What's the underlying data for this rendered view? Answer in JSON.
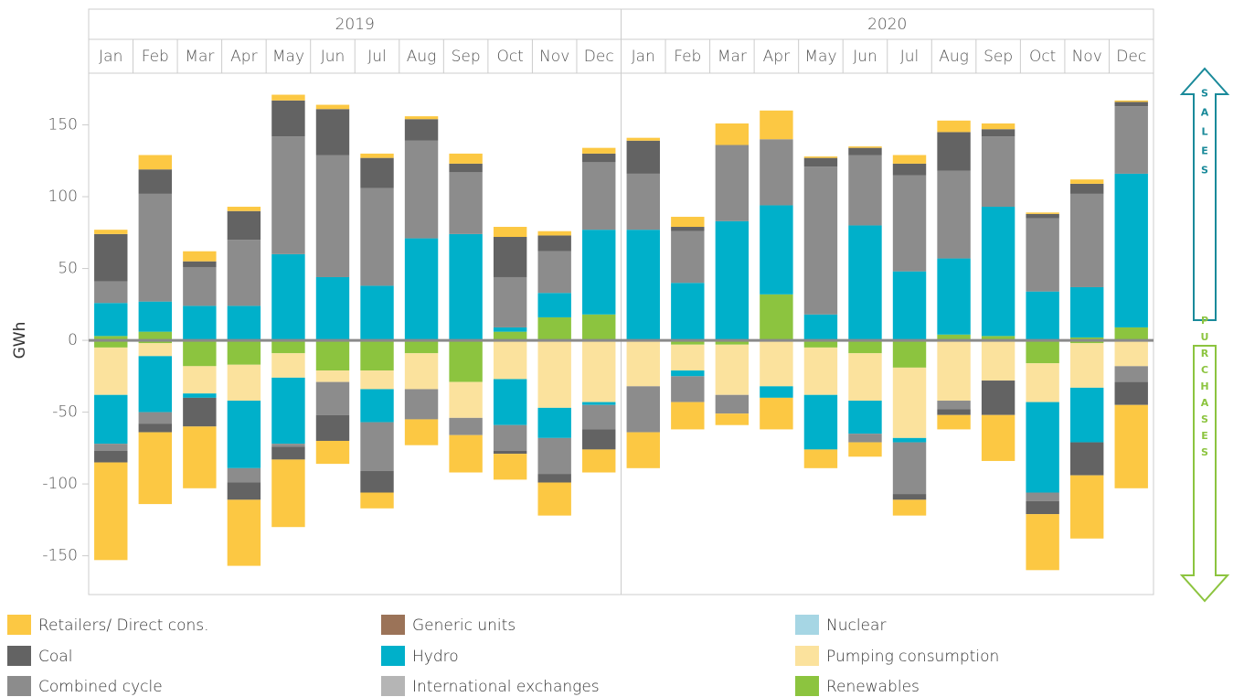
{
  "chart_data": {
    "type": "bar",
    "y_label": "GWh",
    "years": [
      "2019",
      "2020"
    ],
    "categories": [
      "Jan",
      "Feb",
      "Mar",
      "Apr",
      "May",
      "Jun",
      "Jul",
      "Aug",
      "Sep",
      "Oct",
      "Nov",
      "Dec",
      "Jan",
      "Feb",
      "Mar",
      "Apr",
      "May",
      "Jun",
      "Jul",
      "Aug",
      "Sep",
      "Oct",
      "Nov",
      "Dec"
    ],
    "ylim": [
      -177,
      186
    ],
    "yticks": [
      -150,
      -100,
      -50,
      0,
      50,
      100,
      150
    ],
    "annotations": [
      "SALES",
      "PURCHASES"
    ],
    "series": [
      {
        "name": "Retailers/ Direct cons.",
        "color": "#fcc843",
        "sales": [
          3,
          10,
          7,
          3,
          4,
          3,
          3,
          2,
          7,
          7,
          3,
          4,
          2,
          7,
          15,
          20,
          1,
          1,
          6,
          8,
          4,
          1,
          3,
          1
        ],
        "purchases": [
          -68,
          -50,
          -43,
          -46,
          -47,
          -16,
          -11,
          -18,
          -26,
          -18,
          -23,
          -16,
          -25,
          -19,
          -8,
          -22,
          -13,
          -10,
          -11,
          -10,
          -32,
          -39,
          -44,
          -58
        ]
      },
      {
        "name": "Coal",
        "color": "#636363",
        "sales": [
          33,
          17,
          4,
          20,
          25,
          32,
          21,
          15,
          6,
          28,
          11,
          6,
          23,
          3,
          0,
          0,
          6,
          5,
          8,
          27,
          5,
          3,
          7,
          3
        ],
        "purchases": [
          -8,
          -6,
          -20,
          -12,
          -9,
          -18,
          -15,
          0,
          0,
          -2,
          -6,
          -14,
          0,
          0,
          0,
          0,
          0,
          0,
          -4,
          -4,
          -24,
          -9,
          -23,
          -16
        ]
      },
      {
        "name": "Combined cycle",
        "color": "#8c8c8c",
        "sales": [
          15,
          75,
          27,
          46,
          82,
          85,
          68,
          68,
          43,
          35,
          29,
          47,
          39,
          36,
          53,
          46,
          103,
          49,
          67,
          61,
          49,
          51,
          65,
          47
        ],
        "purchases": [
          -5,
          -8,
          0,
          -10,
          -2,
          -23,
          -34,
          -21,
          -12,
          -18,
          -25,
          -17,
          -32,
          -18,
          -13,
          0,
          0,
          -6,
          -36,
          -6,
          0,
          -6,
          0,
          -11
        ]
      },
      {
        "name": "Generic units",
        "color": "#9b7358",
        "sales": [
          0,
          0,
          0,
          0,
          0,
          0,
          0,
          0,
          0,
          0,
          0,
          0,
          0,
          0,
          0,
          0,
          0,
          0,
          0,
          0,
          0,
          0,
          0,
          0
        ],
        "purchases": [
          0,
          0,
          0,
          0,
          0,
          0,
          0,
          0,
          0,
          0,
          0,
          0,
          0,
          0,
          0,
          0,
          0,
          0,
          0,
          0,
          0,
          0,
          0,
          0
        ]
      },
      {
        "name": "Hydro",
        "color": "#00b0ca",
        "sales": [
          23,
          21,
          24,
          24,
          60,
          44,
          38,
          71,
          74,
          3,
          17,
          59,
          77,
          40,
          83,
          62,
          18,
          80,
          48,
          53,
          90,
          34,
          35,
          107
        ],
        "purchases": [
          -34,
          -39,
          -3,
          -47,
          -46,
          0,
          -23,
          0,
          0,
          -32,
          -21,
          -2,
          0,
          -4,
          0,
          -8,
          -38,
          -23,
          -3,
          0,
          0,
          -63,
          -38,
          0
        ]
      },
      {
        "name": "International exchanges",
        "color": "#b5b5b5",
        "sales": [
          0,
          0,
          0,
          0,
          0,
          0,
          0,
          0,
          0,
          0,
          0,
          0,
          0,
          0,
          0,
          0,
          0,
          0,
          0,
          0,
          0,
          0,
          0,
          0
        ],
        "purchases": [
          0,
          0,
          0,
          0,
          0,
          0,
          0,
          0,
          0,
          0,
          0,
          0,
          0,
          0,
          0,
          0,
          0,
          0,
          0,
          0,
          0,
          0,
          0,
          0
        ]
      },
      {
        "name": "Nuclear",
        "color": "#a6d6e4",
        "sales": [
          0,
          0,
          0,
          0,
          0,
          0,
          0,
          0,
          0,
          0,
          0,
          0,
          0,
          0,
          0,
          0,
          0,
          0,
          0,
          0,
          0,
          0,
          0,
          0
        ],
        "purchases": [
          0,
          0,
          0,
          0,
          0,
          0,
          0,
          0,
          0,
          0,
          0,
          0,
          0,
          0,
          0,
          0,
          0,
          0,
          0,
          0,
          0,
          0,
          0,
          0
        ]
      },
      {
        "name": "Pumping consumption",
        "color": "#fbe29d",
        "sales": [
          0,
          0,
          0,
          0,
          0,
          0,
          0,
          0,
          0,
          0,
          0,
          0,
          0,
          0,
          0,
          0,
          0,
          0,
          0,
          0,
          0,
          0,
          0,
          0
        ],
        "purchases": [
          -33,
          -9,
          -19,
          -25,
          -17,
          -8,
          -13,
          -25,
          -25,
          -27,
          -47,
          -43,
          -32,
          -18,
          -35,
          -32,
          -33,
          -33,
          -49,
          -42,
          -28,
          -27,
          -31,
          -18
        ]
      },
      {
        "name": "Renewables",
        "color": "#8cc43f",
        "sales": [
          3,
          6,
          0,
          0,
          0,
          0,
          0,
          0,
          0,
          6,
          16,
          18,
          0,
          0,
          0,
          32,
          0,
          0,
          0,
          4,
          3,
          0,
          2,
          9
        ],
        "purchases": [
          -5,
          -2,
          -18,
          -17,
          -9,
          -21,
          -21,
          -9,
          -29,
          0,
          0,
          0,
          0,
          -3,
          -3,
          0,
          -5,
          -9,
          -19,
          0,
          0,
          -16,
          -2,
          0
        ]
      }
    ]
  }
}
